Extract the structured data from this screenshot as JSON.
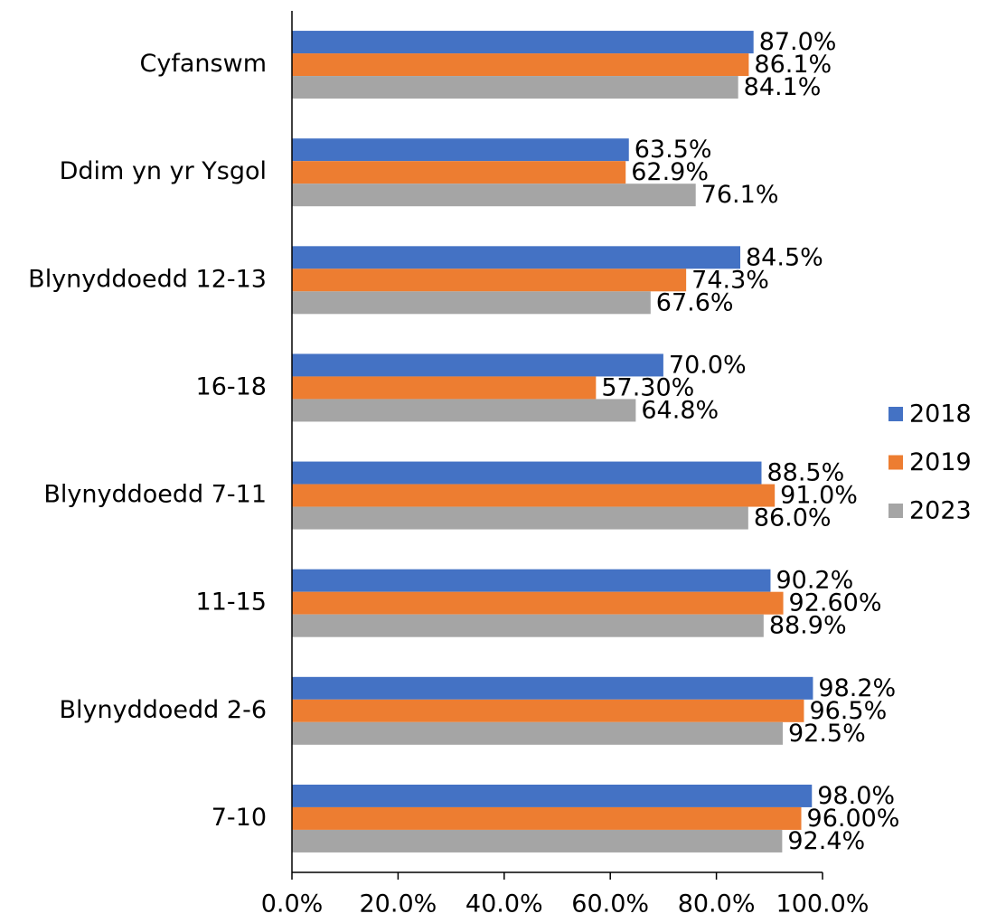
{
  "chart_data": {
    "type": "hbar",
    "categories": [
      "Cyfanswm",
      "Ddim yn yr Ysgol",
      "Blynyddoedd 12-13",
      "16-18",
      "Blynyddoedd 7-11",
      "11-15",
      "Blynyddoedd 2-6",
      "7-10"
    ],
    "series": [
      {
        "name": "2018",
        "color": "#4472c4",
        "values": [
          87.0,
          63.5,
          84.5,
          70.0,
          88.5,
          90.2,
          98.2,
          98.0
        ],
        "value_labels": [
          "87.0%",
          "63.5%",
          "84.5%",
          "70.0%",
          "88.5%",
          "90.2%",
          "98.2%",
          "98.0%"
        ]
      },
      {
        "name": "2019",
        "color": "#ed7d31",
        "values": [
          86.1,
          62.9,
          74.3,
          57.3,
          91.0,
          92.6,
          96.5,
          96.0
        ],
        "value_labels": [
          "86.1%",
          "62.9%",
          "74.3%",
          "57.30%",
          "91.0%",
          "92.60%",
          "96.5%",
          "96.00%"
        ]
      },
      {
        "name": "2023",
        "color": "#a5a5a5",
        "values": [
          84.1,
          76.1,
          67.6,
          64.8,
          86.0,
          88.9,
          92.5,
          92.4
        ],
        "value_labels": [
          "84.1%",
          "76.1%",
          "67.6%",
          "64.8%",
          "86.0%",
          "88.9%",
          "92.5%",
          "92.4%"
        ]
      }
    ],
    "xlim": [
      0,
      100
    ],
    "xticks": [
      {
        "value": 0,
        "label": "0.0%"
      },
      {
        "value": 20,
        "label": "20.0%"
      },
      {
        "value": 40,
        "label": "40.0%"
      },
      {
        "value": 60,
        "label": "60.0%"
      },
      {
        "value": 80,
        "label": "80.0%"
      },
      {
        "value": 100,
        "label": "100.0%"
      }
    ],
    "legend": "right"
  }
}
